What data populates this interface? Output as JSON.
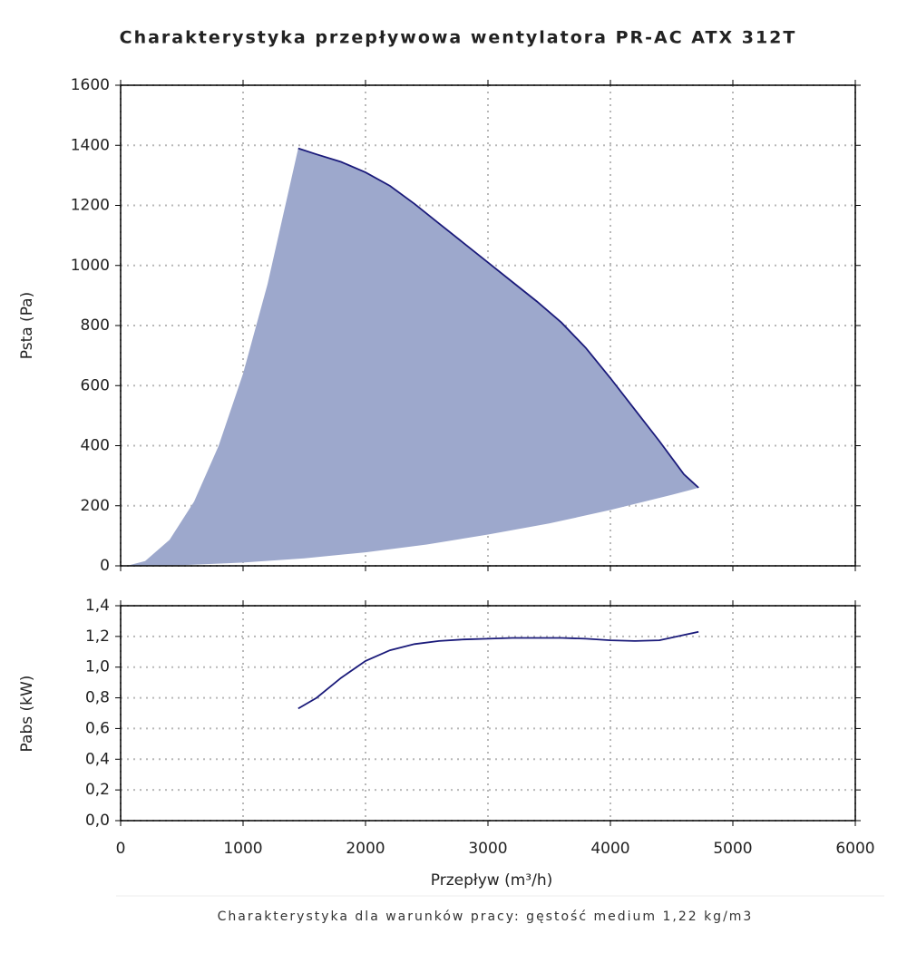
{
  "chart_data": [
    {
      "type": "area",
      "title": "Charakterystyka przepływowa wentylatora PR-AC ATX 312T",
      "ylabel": "Psta (Pa)",
      "fill": "#9da8cc",
      "grid": true,
      "xlim": [
        0,
        6000
      ],
      "xticks": [
        0,
        1000,
        2000,
        3000,
        4000,
        5000,
        6000
      ],
      "ylim": [
        0,
        1600
      ],
      "yticks": [
        0,
        200,
        400,
        600,
        800,
        1000,
        1200,
        1400,
        1600
      ],
      "series": [
        {
          "color": "#1a1a7a",
          "x": [
            1450,
            1600,
            1800,
            2000,
            2200,
            2400,
            2600,
            2800,
            3000,
            3200,
            3400,
            3600,
            3800,
            4000,
            4200,
            4400,
            4600,
            4720
          ],
          "values": [
            1390,
            1370,
            1345,
            1310,
            1265,
            1205,
            1140,
            1075,
            1010,
            945,
            880,
            810,
            725,
            625,
            520,
            415,
            305,
            260
          ]
        },
        {
          "x": [
            50,
            200,
            400,
            600,
            800,
            1000,
            1200,
            1450
          ],
          "values": [
            0,
            16,
            87,
            214,
            399,
            640,
            938,
            1390
          ]
        },
        {
          "x": [
            4720,
            4500,
            4000,
            3500,
            3000,
            2500,
            2000,
            1500,
            1000,
            500,
            50
          ],
          "values": [
            260,
            236,
            186,
            141,
            104,
            71,
            45,
            25,
            11,
            2,
            0
          ]
        }
      ]
    },
    {
      "type": "line",
      "ylabel": "Pabs (kW)",
      "xlabel": "Przepływ (m³/h)",
      "caption": "Charakterystyka dla warunków pracy: gęstość medium 1,22 kg/m3",
      "grid": true,
      "xlim": [
        0,
        6000
      ],
      "xticks": [
        0,
        1000,
        2000,
        3000,
        4000,
        5000,
        6000
      ],
      "ylim": [
        0,
        1.4
      ],
      "yticks": [
        {
          "value": 0,
          "label": "0,0"
        },
        {
          "value": 0.2,
          "label": "0,2"
        },
        {
          "value": 0.4,
          "label": "0,4"
        },
        {
          "value": 0.6,
          "label": "0,6"
        },
        {
          "value": 0.8,
          "label": "0,8"
        },
        {
          "value": 1.0,
          "label": "1,0"
        },
        {
          "value": 1.2,
          "label": "1,2"
        },
        {
          "value": 1.4,
          "label": "1,4"
        }
      ],
      "series": [
        {
          "color": "#1a1a7a",
          "x": [
            1450,
            1600,
            1800,
            2000,
            2200,
            2400,
            2600,
            2800,
            3000,
            3200,
            3400,
            3600,
            3800,
            4000,
            4200,
            4400,
            4600,
            4720
          ],
          "values": [
            0.73,
            0.8,
            0.93,
            1.04,
            1.11,
            1.15,
            1.17,
            1.18,
            1.185,
            1.19,
            1.19,
            1.19,
            1.185,
            1.175,
            1.17,
            1.175,
            1.21,
            1.23
          ]
        }
      ]
    }
  ]
}
